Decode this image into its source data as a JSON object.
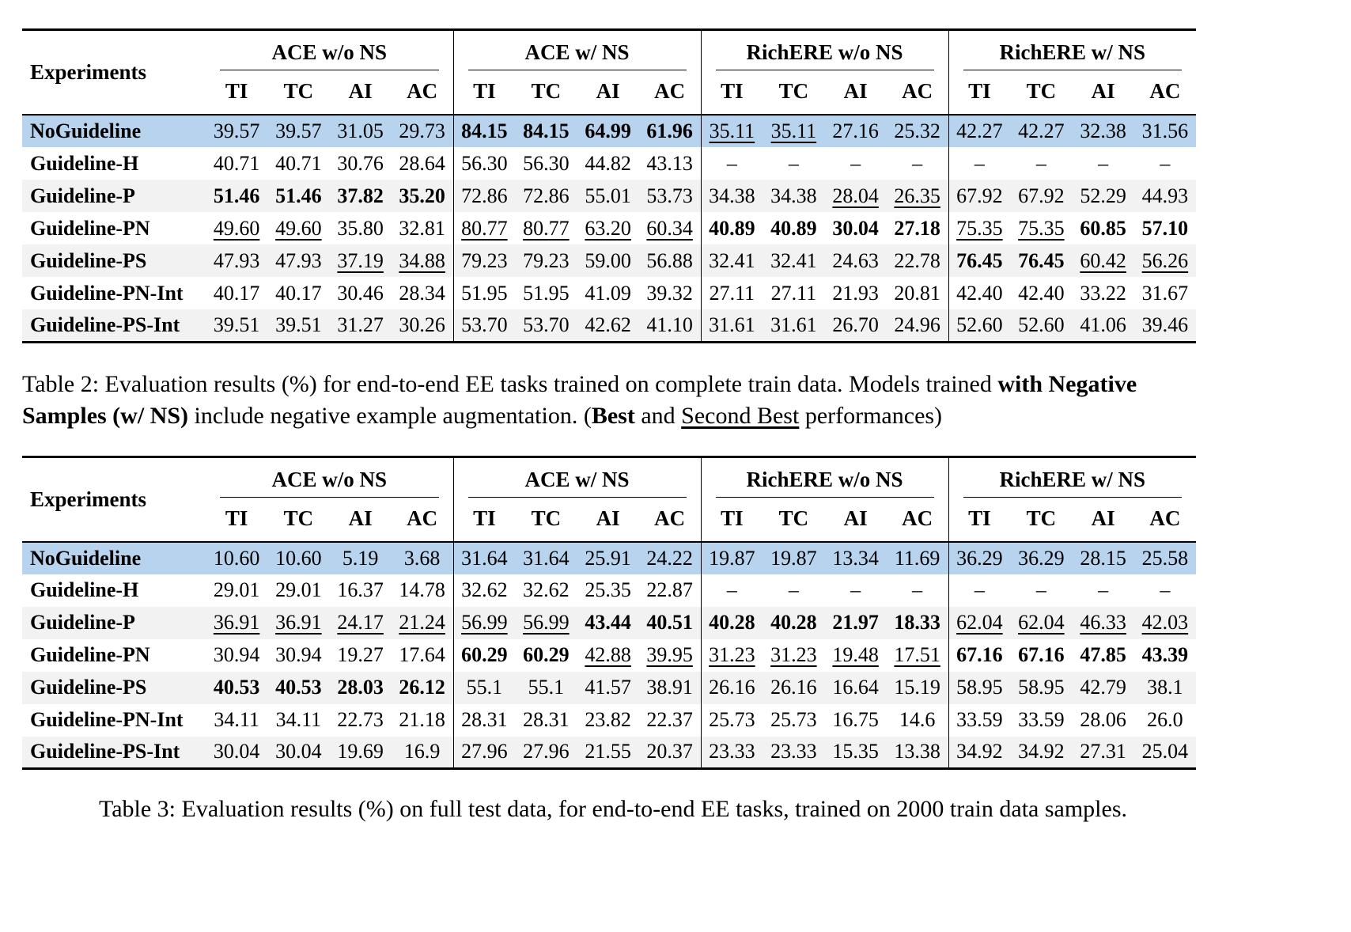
{
  "colors": {
    "highlight_row": "#b8d3ee",
    "alt_row": "#f2f2f2"
  },
  "tables": [
    {
      "row_header": "Experiments",
      "groups": [
        "ACE w/o NS",
        "ACE w/ NS",
        "RichERE w/o NS",
        "RichERE w/ NS"
      ],
      "subcolumns": [
        "TI",
        "TC",
        "AI",
        "AC"
      ],
      "rows": [
        {
          "label": "NoGuideline",
          "bg": "highlight",
          "values": [
            "39.57",
            "39.57",
            "31.05",
            "29.73",
            "84.15",
            "84.15",
            "64.99",
            "61.96",
            "35.11",
            "35.11",
            "27.16",
            "25.32",
            "42.27",
            "42.27",
            "32.38",
            "31.56"
          ],
          "fmt": [
            "n",
            "n",
            "n",
            "n",
            "b",
            "b",
            "b",
            "b",
            "u",
            "u",
            "n",
            "n",
            "n",
            "n",
            "n",
            "n"
          ]
        },
        {
          "label": "Guideline-H",
          "bg": "plain",
          "values": [
            "40.71",
            "40.71",
            "30.76",
            "28.64",
            "56.30",
            "56.30",
            "44.82",
            "43.13",
            "–",
            "–",
            "–",
            "–",
            "–",
            "–",
            "–",
            "–"
          ],
          "fmt": [
            "n",
            "n",
            "n",
            "n",
            "n",
            "n",
            "n",
            "n",
            "n",
            "n",
            "n",
            "n",
            "n",
            "n",
            "n",
            "n"
          ]
        },
        {
          "label": "Guideline-P",
          "bg": "alt",
          "values": [
            "51.46",
            "51.46",
            "37.82",
            "35.20",
            "72.86",
            "72.86",
            "55.01",
            "53.73",
            "34.38",
            "34.38",
            "28.04",
            "26.35",
            "67.92",
            "67.92",
            "52.29",
            "44.93"
          ],
          "fmt": [
            "b",
            "b",
            "b",
            "b",
            "n",
            "n",
            "n",
            "n",
            "n",
            "n",
            "u",
            "u",
            "n",
            "n",
            "n",
            "n"
          ]
        },
        {
          "label": "Guideline-PN",
          "bg": "plain",
          "values": [
            "49.60",
            "49.60",
            "35.80",
            "32.81",
            "80.77",
            "80.77",
            "63.20",
            "60.34",
            "40.89",
            "40.89",
            "30.04",
            "27.18",
            "75.35",
            "75.35",
            "60.85",
            "57.10"
          ],
          "fmt": [
            "u",
            "u",
            "n",
            "n",
            "u",
            "u",
            "u",
            "u",
            "b",
            "b",
            "b",
            "b",
            "u",
            "u",
            "b",
            "b"
          ]
        },
        {
          "label": "Guideline-PS",
          "bg": "alt",
          "values": [
            "47.93",
            "47.93",
            "37.19",
            "34.88",
            "79.23",
            "79.23",
            "59.00",
            "56.88",
            "32.41",
            "32.41",
            "24.63",
            "22.78",
            "76.45",
            "76.45",
            "60.42",
            "56.26"
          ],
          "fmt": [
            "n",
            "n",
            "u",
            "u",
            "n",
            "n",
            "n",
            "n",
            "n",
            "n",
            "n",
            "n",
            "b",
            "b",
            "u",
            "u"
          ]
        },
        {
          "label": "Guideline-PN-Int",
          "bg": "plain",
          "values": [
            "40.17",
            "40.17",
            "30.46",
            "28.34",
            "51.95",
            "51.95",
            "41.09",
            "39.32",
            "27.11",
            "27.11",
            "21.93",
            "20.81",
            "42.40",
            "42.40",
            "33.22",
            "31.67"
          ],
          "fmt": [
            "n",
            "n",
            "n",
            "n",
            "n",
            "n",
            "n",
            "n",
            "n",
            "n",
            "n",
            "n",
            "n",
            "n",
            "n",
            "n"
          ]
        },
        {
          "label": "Guideline-PS-Int",
          "bg": "alt",
          "values": [
            "39.51",
            "39.51",
            "31.27",
            "30.26",
            "53.70",
            "53.70",
            "42.62",
            "41.10",
            "31.61",
            "31.61",
            "26.70",
            "24.96",
            "52.60",
            "52.60",
            "41.06",
            "39.46"
          ],
          "fmt": [
            "n",
            "n",
            "n",
            "n",
            "n",
            "n",
            "n",
            "n",
            "n",
            "n",
            "n",
            "n",
            "n",
            "n",
            "n",
            "n"
          ]
        }
      ],
      "caption": [
        {
          "t": "Table 2: Evaluation results (%) for end-to-end EE tasks trained on complete train data. Models trained "
        },
        {
          "t": "with Negative Samples (w/ NS)",
          "b": true
        },
        {
          "t": " include negative example augmentation. ("
        },
        {
          "t": "Best",
          "b": true
        },
        {
          "t": " and "
        },
        {
          "t": "Second Best",
          "u": true
        },
        {
          "t": " performances)"
        }
      ]
    },
    {
      "row_header": "Experiments",
      "groups": [
        "ACE w/o NS",
        "ACE w/ NS",
        "RichERE w/o NS",
        "RichERE w/ NS"
      ],
      "subcolumns": [
        "TI",
        "TC",
        "AI",
        "AC"
      ],
      "rows": [
        {
          "label": "NoGuideline",
          "bg": "highlight",
          "values": [
            "10.60",
            "10.60",
            "5.19",
            "3.68",
            "31.64",
            "31.64",
            "25.91",
            "24.22",
            "19.87",
            "19.87",
            "13.34",
            "11.69",
            "36.29",
            "36.29",
            "28.15",
            "25.58"
          ],
          "fmt": [
            "n",
            "n",
            "n",
            "n",
            "n",
            "n",
            "n",
            "n",
            "n",
            "n",
            "n",
            "n",
            "n",
            "n",
            "n",
            "n"
          ]
        },
        {
          "label": "Guideline-H",
          "bg": "plain",
          "values": [
            "29.01",
            "29.01",
            "16.37",
            "14.78",
            "32.62",
            "32.62",
            "25.35",
            "22.87",
            "–",
            "–",
            "–",
            "–",
            "–",
            "–",
            "–",
            "–"
          ],
          "fmt": [
            "n",
            "n",
            "n",
            "n",
            "n",
            "n",
            "n",
            "n",
            "n",
            "n",
            "n",
            "n",
            "n",
            "n",
            "n",
            "n"
          ]
        },
        {
          "label": "Guideline-P",
          "bg": "alt",
          "values": [
            "36.91",
            "36.91",
            "24.17",
            "21.24",
            "56.99",
            "56.99",
            "43.44",
            "40.51",
            "40.28",
            "40.28",
            "21.97",
            "18.33",
            "62.04",
            "62.04",
            "46.33",
            "42.03"
          ],
          "fmt": [
            "u",
            "u",
            "u",
            "u",
            "u",
            "u",
            "b",
            "b",
            "b",
            "b",
            "b",
            "b",
            "u",
            "u",
            "u",
            "u"
          ]
        },
        {
          "label": "Guideline-PN",
          "bg": "plain",
          "values": [
            "30.94",
            "30.94",
            "19.27",
            "17.64",
            "60.29",
            "60.29",
            "42.88",
            "39.95",
            "31.23",
            "31.23",
            "19.48",
            "17.51",
            "67.16",
            "67.16",
            "47.85",
            "43.39"
          ],
          "fmt": [
            "n",
            "n",
            "n",
            "n",
            "b",
            "b",
            "u",
            "u",
            "u",
            "u",
            "u",
            "u",
            "b",
            "b",
            "b",
            "b"
          ]
        },
        {
          "label": "Guideline-PS",
          "bg": "alt",
          "values": [
            "40.53",
            "40.53",
            "28.03",
            "26.12",
            "55.1",
            "55.1",
            "41.57",
            "38.91",
            "26.16",
            "26.16",
            "16.64",
            "15.19",
            "58.95",
            "58.95",
            "42.79",
            "38.1"
          ],
          "fmt": [
            "b",
            "b",
            "b",
            "b",
            "n",
            "n",
            "n",
            "n",
            "n",
            "n",
            "n",
            "n",
            "n",
            "n",
            "n",
            "n"
          ]
        },
        {
          "label": "Guideline-PN-Int",
          "bg": "plain",
          "values": [
            "34.11",
            "34.11",
            "22.73",
            "21.18",
            "28.31",
            "28.31",
            "23.82",
            "22.37",
            "25.73",
            "25.73",
            "16.75",
            "14.6",
            "33.59",
            "33.59",
            "28.06",
            "26.0"
          ],
          "fmt": [
            "n",
            "n",
            "n",
            "n",
            "n",
            "n",
            "n",
            "n",
            "n",
            "n",
            "n",
            "n",
            "n",
            "n",
            "n",
            "n"
          ]
        },
        {
          "label": "Guideline-PS-Int",
          "bg": "alt",
          "values": [
            "30.04",
            "30.04",
            "19.69",
            "16.9",
            "27.96",
            "27.96",
            "21.55",
            "20.37",
            "23.33",
            "23.33",
            "15.35",
            "13.38",
            "34.92",
            "34.92",
            "27.31",
            "25.04"
          ],
          "fmt": [
            "n",
            "n",
            "n",
            "n",
            "n",
            "n",
            "n",
            "n",
            "n",
            "n",
            "n",
            "n",
            "n",
            "n",
            "n",
            "n"
          ]
        }
      ],
      "caption": [
        {
          "t": "Table 3: Evaluation results (%) on full test data, for end-to-end EE tasks, trained on 2000 train data samples."
        }
      ]
    }
  ]
}
